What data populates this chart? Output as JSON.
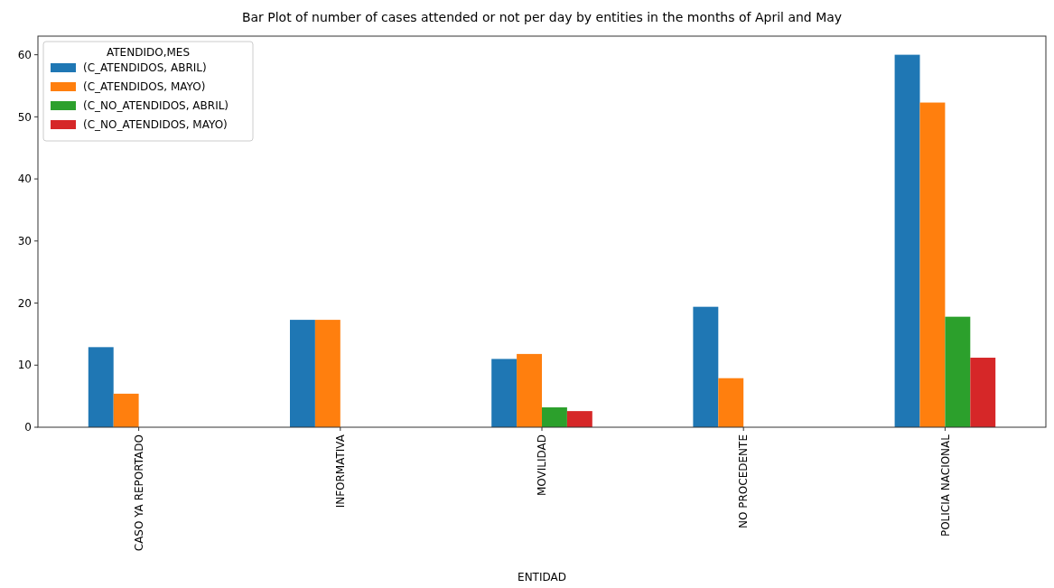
{
  "chart_data": {
    "type": "bar",
    "title": "Bar Plot of number of cases attended or not per day by entities in the months of April and May",
    "xlabel": "ENTIDAD",
    "legend_title": "ATENDIDO,MES",
    "categories": [
      "CASO YA REPORTADO",
      "INFORMATIVA",
      "MOVILIDAD",
      "NO PROCEDENTE",
      "POLICIA NACIONAL"
    ],
    "series": [
      {
        "name": "(C_ATENDIDOS, ABRIL)",
        "color": "#1f77b4",
        "values": [
          12.9,
          17.3,
          11.0,
          19.4,
          60
        ]
      },
      {
        "name": "(C_ATENDIDOS, MAYO)",
        "color": "#ff7f0e",
        "values": [
          5.4,
          17.3,
          11.8,
          7.9,
          52.3
        ]
      },
      {
        "name": "(C_NO_ATENDIDOS, ABRIL)",
        "color": "#2ca02c",
        "values": [
          null,
          null,
          3.2,
          null,
          17.8
        ]
      },
      {
        "name": "(C_NO_ATENDIDOS, MAYO)",
        "color": "#d62728",
        "values": [
          null,
          null,
          2.6,
          null,
          11.2
        ]
      }
    ],
    "ylim": [
      0,
      63
    ],
    "yticks": [
      0,
      10,
      20,
      30,
      40,
      50,
      60
    ],
    "legend": "top left"
  }
}
